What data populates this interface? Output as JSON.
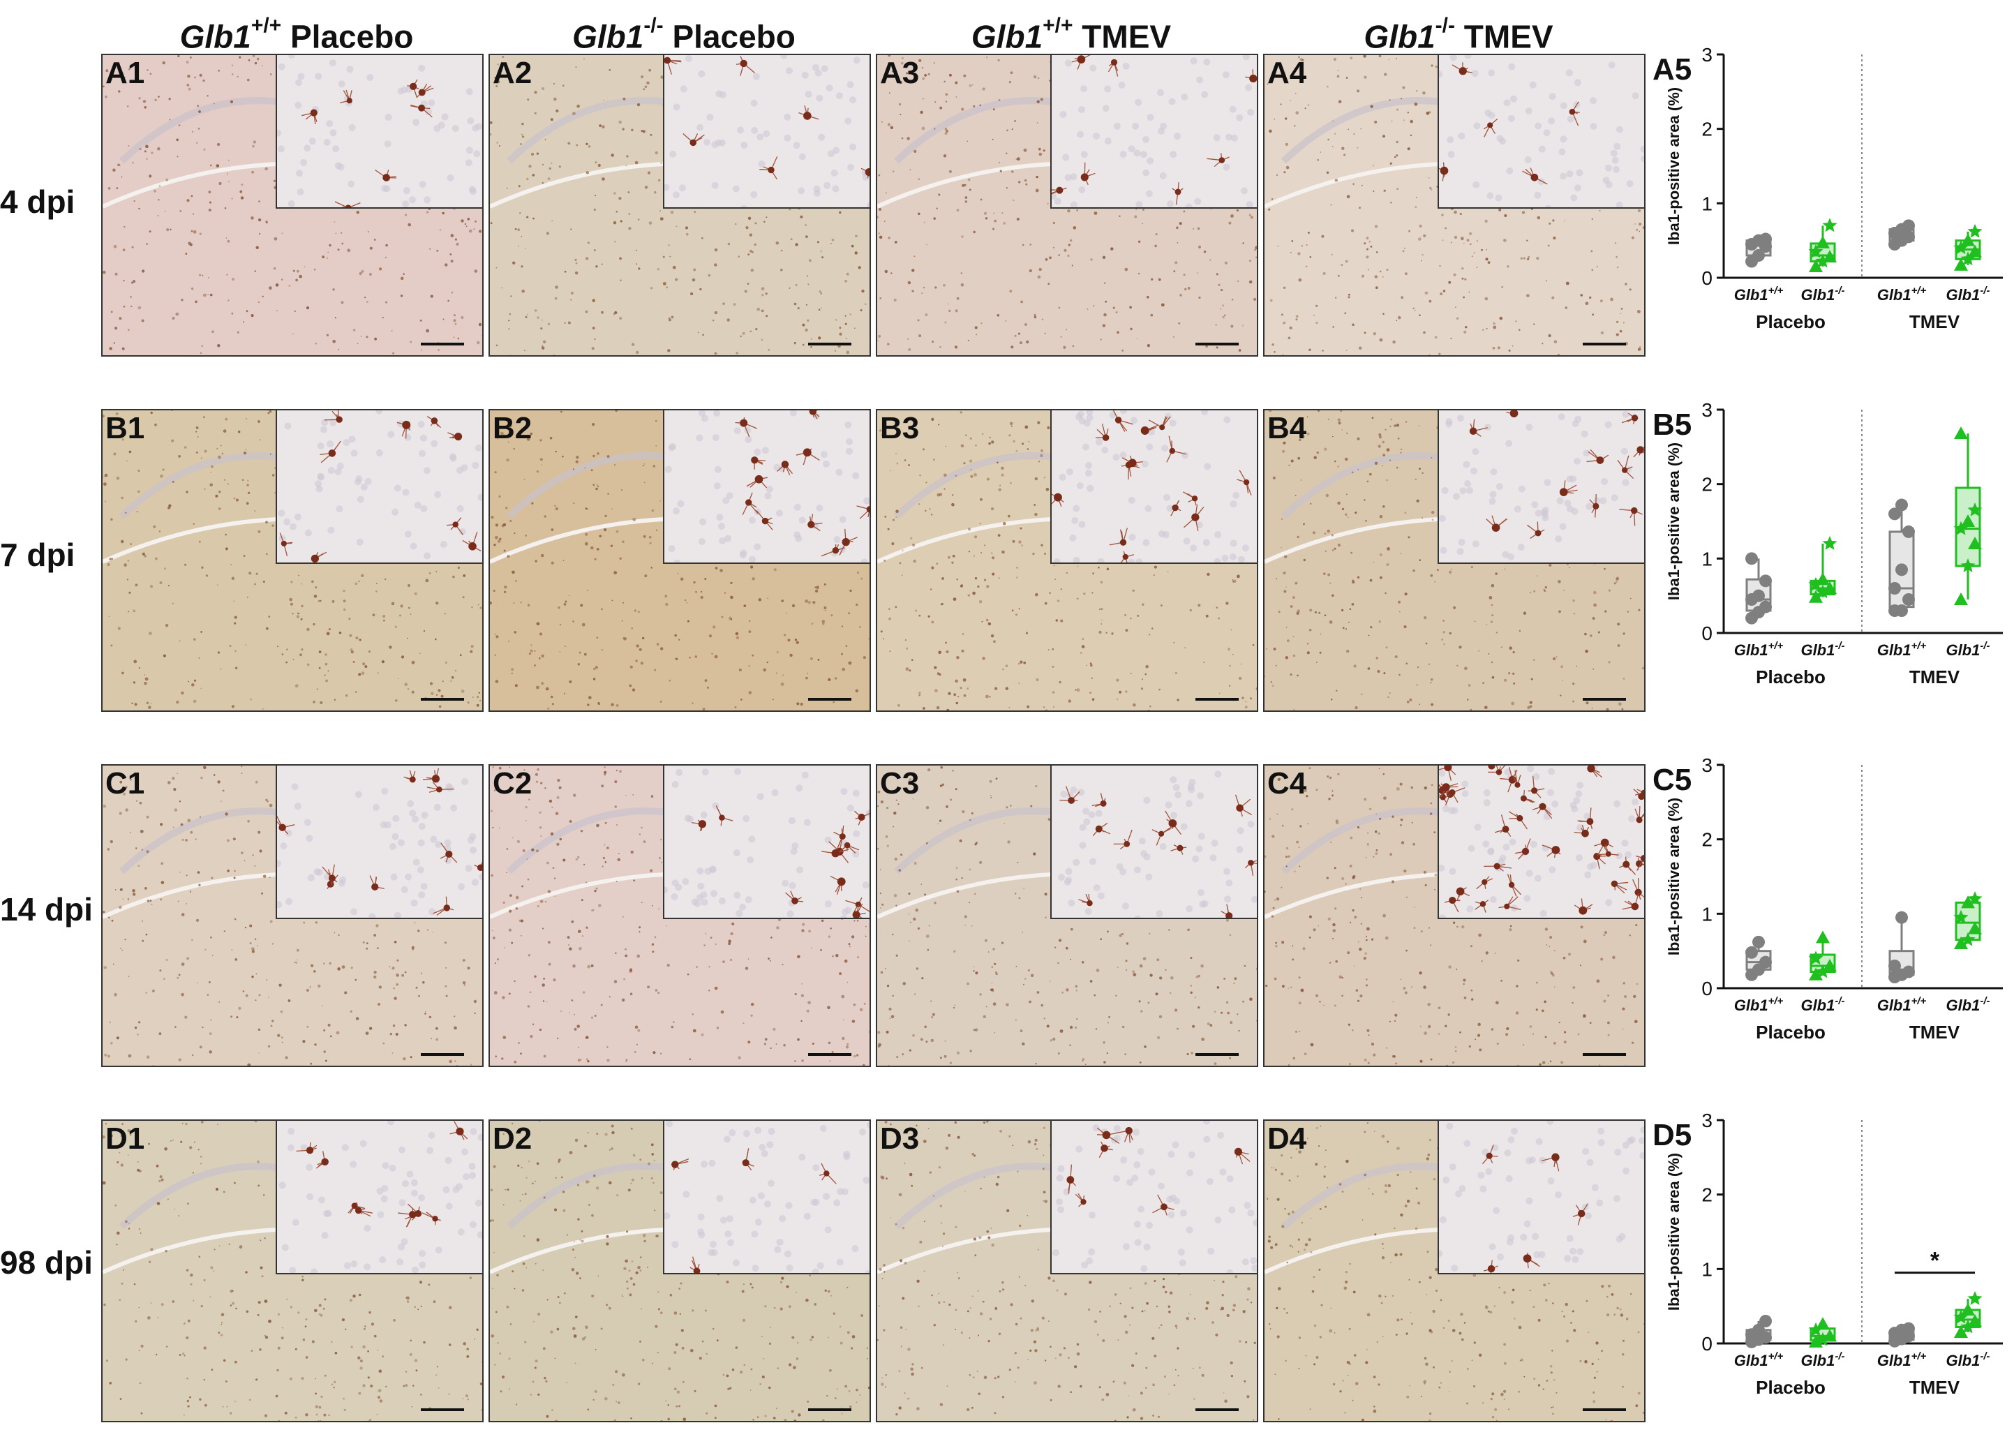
{
  "column_headers": [
    {
      "gene": "Glb1",
      "sup": "+/+",
      "group": "Placebo"
    },
    {
      "gene": "Glb1",
      "sup": "-/-",
      "group": "Placebo"
    },
    {
      "gene": "Glb1",
      "sup": "+/+",
      "group": "TMEV"
    },
    {
      "gene": "Glb1",
      "sup": "-/-",
      "group": "TMEV"
    }
  ],
  "rows": [
    {
      "label": "4 dpi",
      "panels": [
        "A1",
        "A2",
        "A3",
        "A4"
      ],
      "chart_label": "A5"
    },
    {
      "label": "7 dpi",
      "panels": [
        "B1",
        "B2",
        "B3",
        "B4"
      ],
      "chart_label": "B5"
    },
    {
      "label": "14 dpi",
      "panels": [
        "C1",
        "C2",
        "C3",
        "C4"
      ],
      "chart_label": "C5"
    },
    {
      "label": "98 dpi",
      "panels": [
        "D1",
        "D2",
        "D3",
        "D4"
      ],
      "chart_label": "D5"
    }
  ],
  "colors": {
    "wildtype": "#7f7f7f",
    "knockout": "#1fbf1f",
    "wildtype_fill": "#e6e6e6",
    "knockout_fill": "#c9f0c9"
  },
  "chart_data": [
    {
      "type": "box",
      "ylabel": "Iba1-positive area (%)",
      "ylim": [
        0,
        3
      ],
      "yticks": [
        0,
        1,
        2,
        3
      ],
      "groups": [
        "Placebo",
        "TMEV"
      ],
      "category_gene": "Glb1",
      "categories": [
        "+/+",
        "-/-",
        "+/+",
        "-/-"
      ],
      "boxes": [
        {
          "min": 0.22,
          "q1": 0.3,
          "median": 0.44,
          "q3": 0.5,
          "max": 0.52,
          "points": [
            0.22,
            0.3,
            0.42,
            0.45,
            0.5,
            0.52
          ]
        },
        {
          "min": 0.15,
          "q1": 0.22,
          "median": 0.3,
          "q3": 0.46,
          "max": 0.7,
          "points": [
            0.15,
            0.22,
            0.28,
            0.35,
            0.47,
            0.7
          ]
        },
        {
          "min": 0.45,
          "q1": 0.5,
          "median": 0.58,
          "q3": 0.65,
          "max": 0.7,
          "points": [
            0.45,
            0.5,
            0.55,
            0.6,
            0.65,
            0.7
          ]
        },
        {
          "min": 0.17,
          "q1": 0.25,
          "median": 0.38,
          "q3": 0.5,
          "max": 0.62,
          "points": [
            0.17,
            0.25,
            0.35,
            0.4,
            0.5,
            0.62
          ]
        }
      ],
      "significance": null
    },
    {
      "type": "box",
      "ylabel": "Iba1-positive area (%)",
      "ylim": [
        0,
        3
      ],
      "yticks": [
        0,
        1,
        2,
        3
      ],
      "groups": [
        "Placebo",
        "TMEV"
      ],
      "category_gene": "Glb1",
      "categories": [
        "+/+",
        "-/-",
        "+/+",
        "-/-"
      ],
      "boxes": [
        {
          "min": 0.2,
          "q1": 0.3,
          "median": 0.45,
          "q3": 0.72,
          "max": 1.0,
          "points": [
            0.2,
            0.28,
            0.35,
            0.45,
            0.5,
            0.7,
            1.0
          ]
        },
        {
          "min": 0.48,
          "q1": 0.52,
          "median": 0.6,
          "q3": 0.7,
          "max": 1.2,
          "points": [
            0.48,
            0.55,
            0.6,
            0.65,
            0.72,
            1.2
          ]
        },
        {
          "min": 0.3,
          "q1": 0.35,
          "median": 0.6,
          "q3": 1.36,
          "max": 1.72,
          "points": [
            0.3,
            0.3,
            0.45,
            0.6,
            0.85,
            1.36,
            1.6,
            1.72
          ]
        },
        {
          "min": 0.45,
          "q1": 0.9,
          "median": 1.4,
          "q3": 1.95,
          "max": 2.68,
          "points": [
            0.45,
            0.9,
            1.2,
            1.4,
            1.5,
            1.65,
            2.68
          ]
        }
      ],
      "significance": null
    },
    {
      "type": "box",
      "ylabel": "Iba1-positive area (%)",
      "ylim": [
        0,
        3
      ],
      "yticks": [
        0,
        1,
        2,
        3
      ],
      "groups": [
        "Placebo",
        "TMEV"
      ],
      "category_gene": "Glb1",
      "categories": [
        "+/+",
        "-/-",
        "+/+",
        "-/-"
      ],
      "boxes": [
        {
          "min": 0.18,
          "q1": 0.25,
          "median": 0.35,
          "q3": 0.5,
          "max": 0.62,
          "points": [
            0.18,
            0.25,
            0.35,
            0.48,
            0.62
          ]
        },
        {
          "min": 0.18,
          "q1": 0.22,
          "median": 0.3,
          "q3": 0.45,
          "max": 0.68,
          "points": [
            0.18,
            0.22,
            0.3,
            0.4,
            0.68
          ]
        },
        {
          "min": 0.15,
          "q1": 0.18,
          "median": 0.25,
          "q3": 0.5,
          "max": 0.95,
          "points": [
            0.15,
            0.18,
            0.22,
            0.3,
            0.95
          ]
        },
        {
          "min": 0.6,
          "q1": 0.65,
          "median": 0.88,
          "q3": 1.15,
          "max": 1.2,
          "points": [
            0.6,
            0.65,
            0.8,
            0.95,
            1.15,
            1.2
          ]
        }
      ],
      "significance": null
    },
    {
      "type": "box",
      "ylabel": "Iba1-positive area (%)",
      "ylim": [
        0,
        3
      ],
      "yticks": [
        0,
        1,
        2,
        3
      ],
      "groups": [
        "Placebo",
        "TMEV"
      ],
      "category_gene": "Glb1",
      "categories": [
        "+/+",
        "-/-",
        "+/+",
        "-/-"
      ],
      "boxes": [
        {
          "min": 0.0,
          "q1": 0.05,
          "median": 0.12,
          "q3": 0.18,
          "max": 0.3,
          "points": [
            0.02,
            0.05,
            0.08,
            0.12,
            0.18,
            0.3
          ]
        },
        {
          "min": 0.0,
          "q1": 0.04,
          "median": 0.1,
          "q3": 0.2,
          "max": 0.26,
          "points": [
            0.02,
            0.05,
            0.1,
            0.18,
            0.26
          ]
        },
        {
          "min": 0.02,
          "q1": 0.05,
          "median": 0.1,
          "q3": 0.15,
          "max": 0.2,
          "points": [
            0.03,
            0.06,
            0.1,
            0.14,
            0.18,
            0.2
          ]
        },
        {
          "min": 0.15,
          "q1": 0.22,
          "median": 0.32,
          "q3": 0.45,
          "max": 0.6,
          "points": [
            0.15,
            0.22,
            0.3,
            0.35,
            0.45,
            0.6
          ]
        }
      ],
      "significance": {
        "from": 2,
        "to": 3,
        "y": 0.95,
        "label": "*"
      }
    }
  ]
}
